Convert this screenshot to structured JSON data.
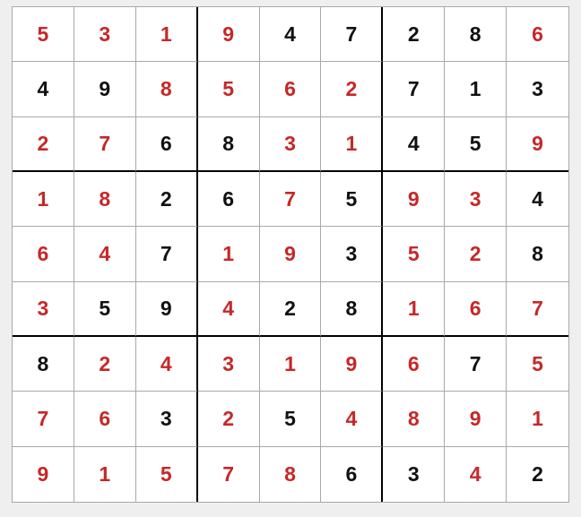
{
  "colors": {
    "given": "#111111",
    "entered": "#c62828"
  },
  "grid": [
    [
      5,
      3,
      1,
      9,
      4,
      7,
      2,
      8,
      6
    ],
    [
      4,
      9,
      8,
      5,
      6,
      2,
      7,
      1,
      3
    ],
    [
      2,
      7,
      6,
      8,
      3,
      1,
      4,
      5,
      9
    ],
    [
      1,
      8,
      2,
      6,
      7,
      5,
      9,
      3,
      4
    ],
    [
      6,
      4,
      7,
      1,
      9,
      3,
      5,
      2,
      8
    ],
    [
      3,
      5,
      9,
      4,
      2,
      8,
      1,
      6,
      7
    ],
    [
      8,
      2,
      4,
      3,
      1,
      9,
      6,
      7,
      5
    ],
    [
      7,
      6,
      3,
      2,
      5,
      4,
      8,
      9,
      1
    ],
    [
      9,
      1,
      5,
      7,
      8,
      6,
      3,
      4,
      2
    ]
  ],
  "given": [
    [
      0,
      0,
      0,
      0,
      1,
      1,
      1,
      1,
      0
    ],
    [
      1,
      1,
      0,
      0,
      0,
      0,
      1,
      1,
      1
    ],
    [
      0,
      0,
      1,
      1,
      0,
      0,
      1,
      1,
      0
    ],
    [
      0,
      0,
      1,
      1,
      0,
      1,
      0,
      0,
      1
    ],
    [
      0,
      0,
      1,
      0,
      0,
      1,
      0,
      0,
      1
    ],
    [
      0,
      1,
      1,
      0,
      1,
      1,
      0,
      0,
      0
    ],
    [
      1,
      0,
      0,
      0,
      0,
      0,
      0,
      1,
      0
    ],
    [
      0,
      0,
      1,
      0,
      1,
      0,
      0,
      0,
      0
    ],
    [
      0,
      0,
      0,
      0,
      0,
      1,
      1,
      0,
      1
    ]
  ]
}
